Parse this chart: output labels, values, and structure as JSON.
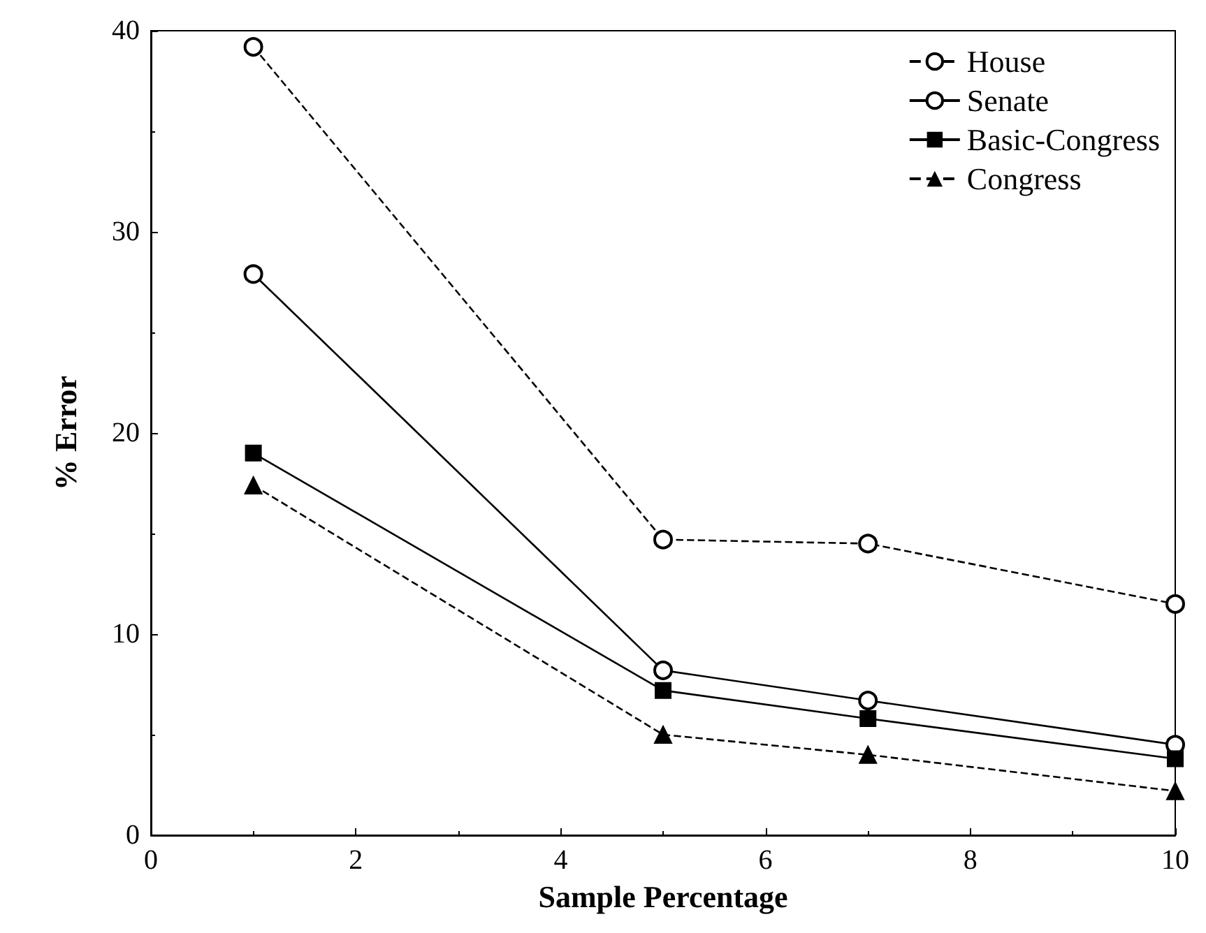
{
  "chart_data": {
    "type": "line",
    "xlabel": "Sample Percentage",
    "ylabel": "% Error",
    "x": [
      1,
      5,
      7,
      10
    ],
    "series": [
      {
        "name": "House",
        "color": "#000000",
        "values": [
          39.2,
          14.7,
          14.5,
          11.5
        ],
        "line_style": "dashed",
        "marker": "circle"
      },
      {
        "name": "Senate",
        "color": "#000000",
        "values": [
          27.9,
          8.2,
          6.7,
          4.5
        ],
        "line_style": "solid",
        "marker": "circle"
      },
      {
        "name": "Basic-Congress",
        "color": "#000000",
        "values": [
          19.0,
          7.2,
          5.8,
          3.8
        ],
        "line_style": "solid",
        "marker": "square"
      },
      {
        "name": "Congress",
        "color": "#000000",
        "values": [
          17.4,
          5.0,
          4.0,
          2.2
        ],
        "line_style": "dashed",
        "marker": "triangle"
      }
    ],
    "xlim": [
      0,
      10
    ],
    "xticks": [
      0,
      2,
      4,
      6,
      8,
      10
    ],
    "ylim": [
      0,
      40
    ],
    "yticks": [
      0,
      10,
      20,
      30,
      40
    ],
    "grid": false,
    "legend": "top right"
  }
}
